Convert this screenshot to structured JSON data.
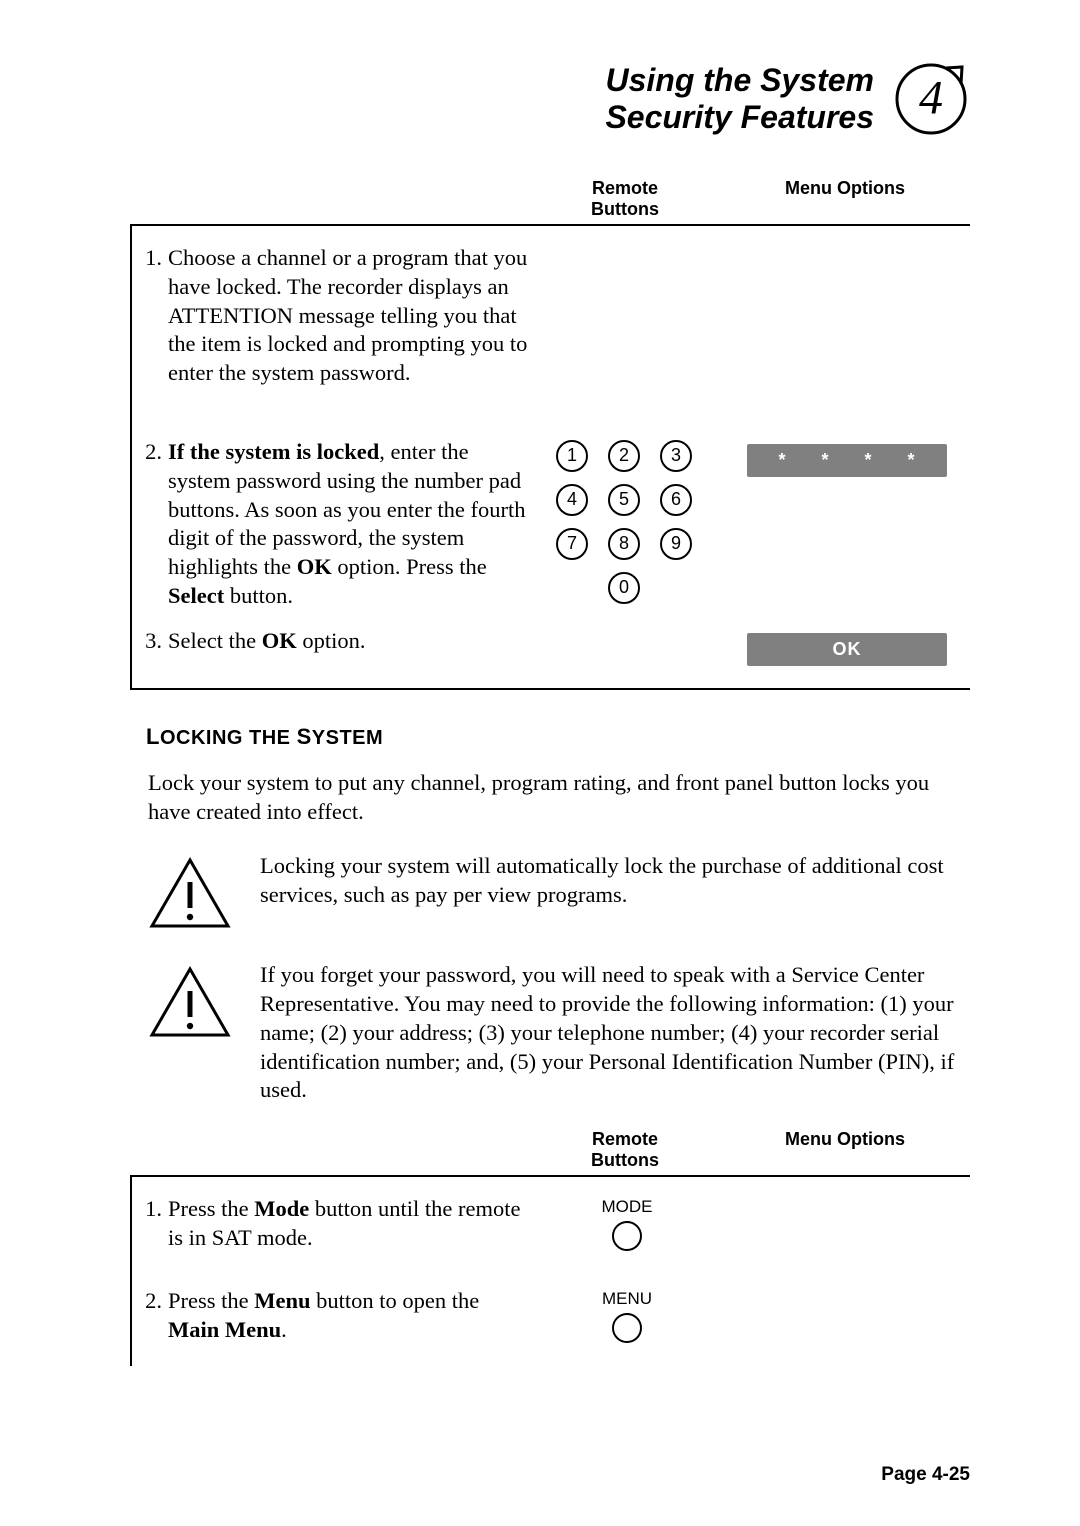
{
  "header": {
    "title_line1": "Using the System",
    "title_line2": "Security Features",
    "chapter_number": "4"
  },
  "columns": {
    "remote_line1": "Remote",
    "remote_line2": "Buttons",
    "menu_options": "Menu Options"
  },
  "table1": {
    "steps": [
      {
        "num": "1.",
        "text": "Choose a channel or a program that you have locked.  The recorder displays an ATTENTION message telling you that the item is locked and prompting you to enter the system password.",
        "remote": null,
        "menu": null
      },
      {
        "num": "2.",
        "html": "<b>If the system is locked</b>, enter the system password using the number pad buttons.  As soon as you enter the fourth digit of the password, the system highlights the <b>OK</b> option.  Press the <b>Select</b> button.",
        "remote": "numpad",
        "menu": "stars"
      },
      {
        "num": "3.",
        "html": "Select the <b>OK</b> option.",
        "remote": null,
        "menu": "ok"
      }
    ],
    "numpad_keys": [
      "1",
      "2",
      "3",
      "4",
      "5",
      "6",
      "7",
      "8",
      "9",
      "0"
    ],
    "stars": [
      "*",
      "*",
      "*",
      "*"
    ],
    "ok_label": "OK"
  },
  "section_heading": "Locking the System",
  "body_para": "Lock your system to put any channel, program rating, and front panel button locks you have created into effect.",
  "warnings": [
    "Locking your system will automatically lock the purchase of additional cost services, such as pay per view programs.",
    "If you forget your password, you will need to speak with a Service Center Representative.  You may need to provide the following information:  (1) your name;  (2) your address;  (3) your telephone number;  (4) your recorder serial identification number;  and, (5) your Personal Identification Number (PIN), if used."
  ],
  "table2": {
    "steps": [
      {
        "num": "1.",
        "html": "Press the <b>Mode</b> button until the remote is in SAT mode.",
        "remote_label": "MODE"
      },
      {
        "num": "2.",
        "html": "Press the <b>Menu</b> button to open the <b>Main Menu</b>.",
        "remote_label": "MENU"
      }
    ]
  },
  "footer": "Page 4-25",
  "colors": {
    "text": "#000000",
    "bg": "#ffffff",
    "chip_bg": "#808080",
    "chip_fg": "#ffffff"
  },
  "typography": {
    "body_family": "Times New Roman",
    "ui_family": "Arial",
    "body_size_pt": 17,
    "header_size_pt": 24,
    "heading_size_pt": 15,
    "caption_size_pt": 13
  }
}
